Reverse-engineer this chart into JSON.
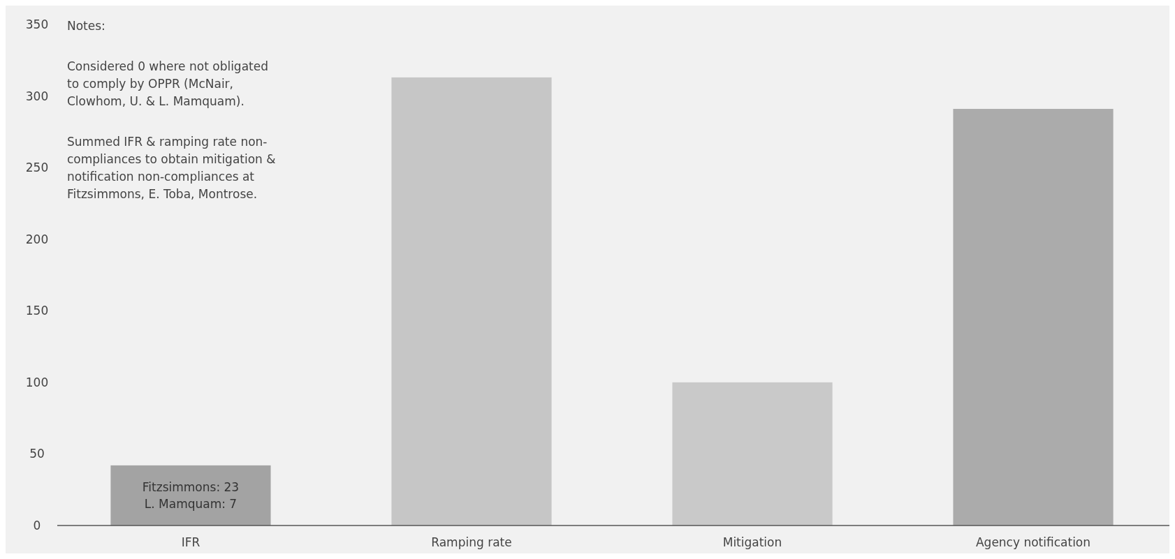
{
  "chart_data": {
    "type": "bar",
    "categories": [
      "IFR",
      "Ramping rate",
      "Mitigation",
      "Agency notification"
    ],
    "values": [
      42,
      313,
      100,
      291
    ],
    "colors": [
      "#a3a3a3",
      "#c6c6c6",
      "#c9c9c9",
      "#ababab"
    ],
    "ylim": [
      0,
      350
    ],
    "yticks": [
      0,
      50,
      100,
      150,
      200,
      250,
      300,
      350
    ],
    "annotations": [
      "Notes:\n\nConsidered 0 where not obligated\nto comply by OPPR (McNair,\nClowhom, U. & L. Mamquam).\n\nSummed IFR & ramping rate non-\ncompliances to obtain mitigation &\nnotification non-compliances at\nFitzsimmons, E. Toba, Montrose.",
      "Fitzsimmons: 23\nL. Mamquam: 7"
    ]
  }
}
